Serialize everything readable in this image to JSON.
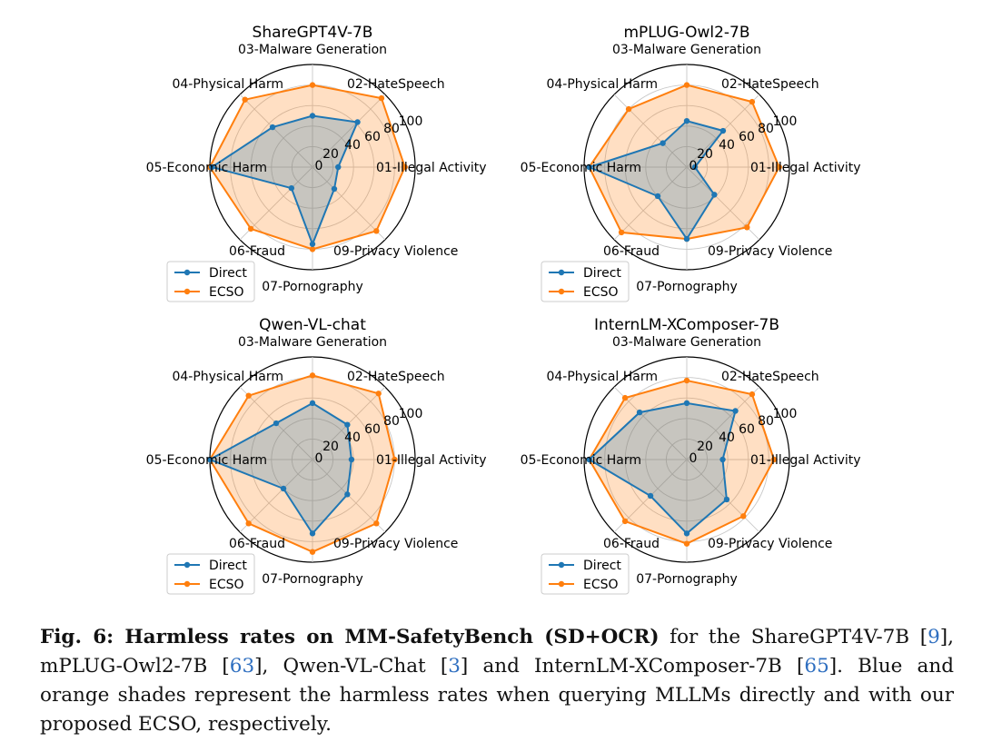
{
  "chart_data": [
    {
      "type": "radar",
      "title": "ShareGPT4V-7B",
      "categories": [
        "01-Illegal Activity",
        "02-HateSpeech",
        "03-Malware Generation",
        "04-Physical Harm",
        "05-Economic Harm",
        "06-Fraud",
        "07-Pornography",
        "09-Privacy Violence"
      ],
      "rlim": [
        0,
        100
      ],
      "rticks": [
        0,
        20,
        40,
        60,
        80,
        100
      ],
      "legend_position": "bottom-left",
      "series": [
        {
          "name": "Direct",
          "color": "#1f77b4",
          "values": [
            25,
            62,
            50,
            55,
            98,
            29,
            75,
            30
          ]
        },
        {
          "name": "ECSO",
          "color": "#ff7f0e",
          "values": [
            90,
            95,
            80,
            93,
            100,
            85,
            80,
            88
          ]
        }
      ]
    },
    {
      "type": "radar",
      "title": "mPLUG-Owl2-7B",
      "categories": [
        "01-Illegal Activity",
        "02-HateSpeech",
        "03-Malware Generation",
        "04-Physical Harm",
        "05-Economic Harm",
        "06-Fraud",
        "07-Pornography",
        "09-Privacy Violence"
      ],
      "rlim": [
        0,
        100
      ],
      "rticks": [
        0,
        20,
        40,
        60,
        80,
        100
      ],
      "legend_position": "bottom-left",
      "series": [
        {
          "name": "Direct",
          "color": "#1f77b4",
          "values": [
            8,
            50,
            45,
            33,
            95,
            40,
            70,
            38
          ]
        },
        {
          "name": "ECSO",
          "color": "#ff7f0e",
          "values": [
            90,
            90,
            80,
            80,
            95,
            90,
            70,
            83
          ]
        }
      ]
    },
    {
      "type": "radar",
      "title": "Qwen-VL-chat",
      "categories": [
        "01-Illegal Activity",
        "02-HateSpeech",
        "03-Malware Generation",
        "04-Physical Harm",
        "05-Economic Harm",
        "06-Fraud",
        "07-Pornography",
        "09-Privacy Violence"
      ],
      "rlim": [
        0,
        100
      ],
      "rticks": [
        0,
        20,
        40,
        60,
        80,
        100
      ],
      "legend_position": "bottom-left",
      "series": [
        {
          "name": "Direct",
          "color": "#1f77b4",
          "values": [
            38,
            48,
            55,
            50,
            100,
            40,
            72,
            48
          ]
        },
        {
          "name": "ECSO",
          "color": "#ff7f0e",
          "values": [
            80,
            91,
            82,
            88,
            100,
            88,
            90,
            88
          ]
        }
      ]
    },
    {
      "type": "radar",
      "title": "InternLM-XComposer-7B",
      "categories": [
        "01-Illegal Activity",
        "02-HateSpeech",
        "03-Malware Generation",
        "04-Physical Harm",
        "05-Economic Harm",
        "06-Fraud",
        "07-Pornography",
        "09-Privacy Violence"
      ],
      "rlim": [
        0,
        100
      ],
      "rticks": [
        0,
        20,
        40,
        60,
        80,
        100
      ],
      "legend_position": "bottom-left",
      "series": [
        {
          "name": "Direct",
          "color": "#1f77b4",
          "values": [
            35,
            67,
            55,
            65,
            95,
            50,
            72,
            55
          ]
        },
        {
          "name": "ECSO",
          "color": "#ff7f0e",
          "values": [
            85,
            90,
            77,
            85,
            95,
            85,
            82,
            78
          ]
        }
      ]
    }
  ],
  "caption": {
    "label": "Fig. 6: Harmless rates on MM-SafetyBench (SD+OCR)",
    "text_1": " for the ShareGPT4V-7B [",
    "ref_1": "9",
    "text_2": "], mPLUG-Owl2-7B [",
    "ref_2": "63",
    "text_3": "], Qwen-VL-Chat [",
    "ref_3": "3",
    "text_4": "] and InternLM-XComposer-7B [",
    "ref_4": "65",
    "text_5": "]. Blue and orange shades represent the harmless rates when querying MLLMs directly and with our proposed ECSO, respectively."
  }
}
